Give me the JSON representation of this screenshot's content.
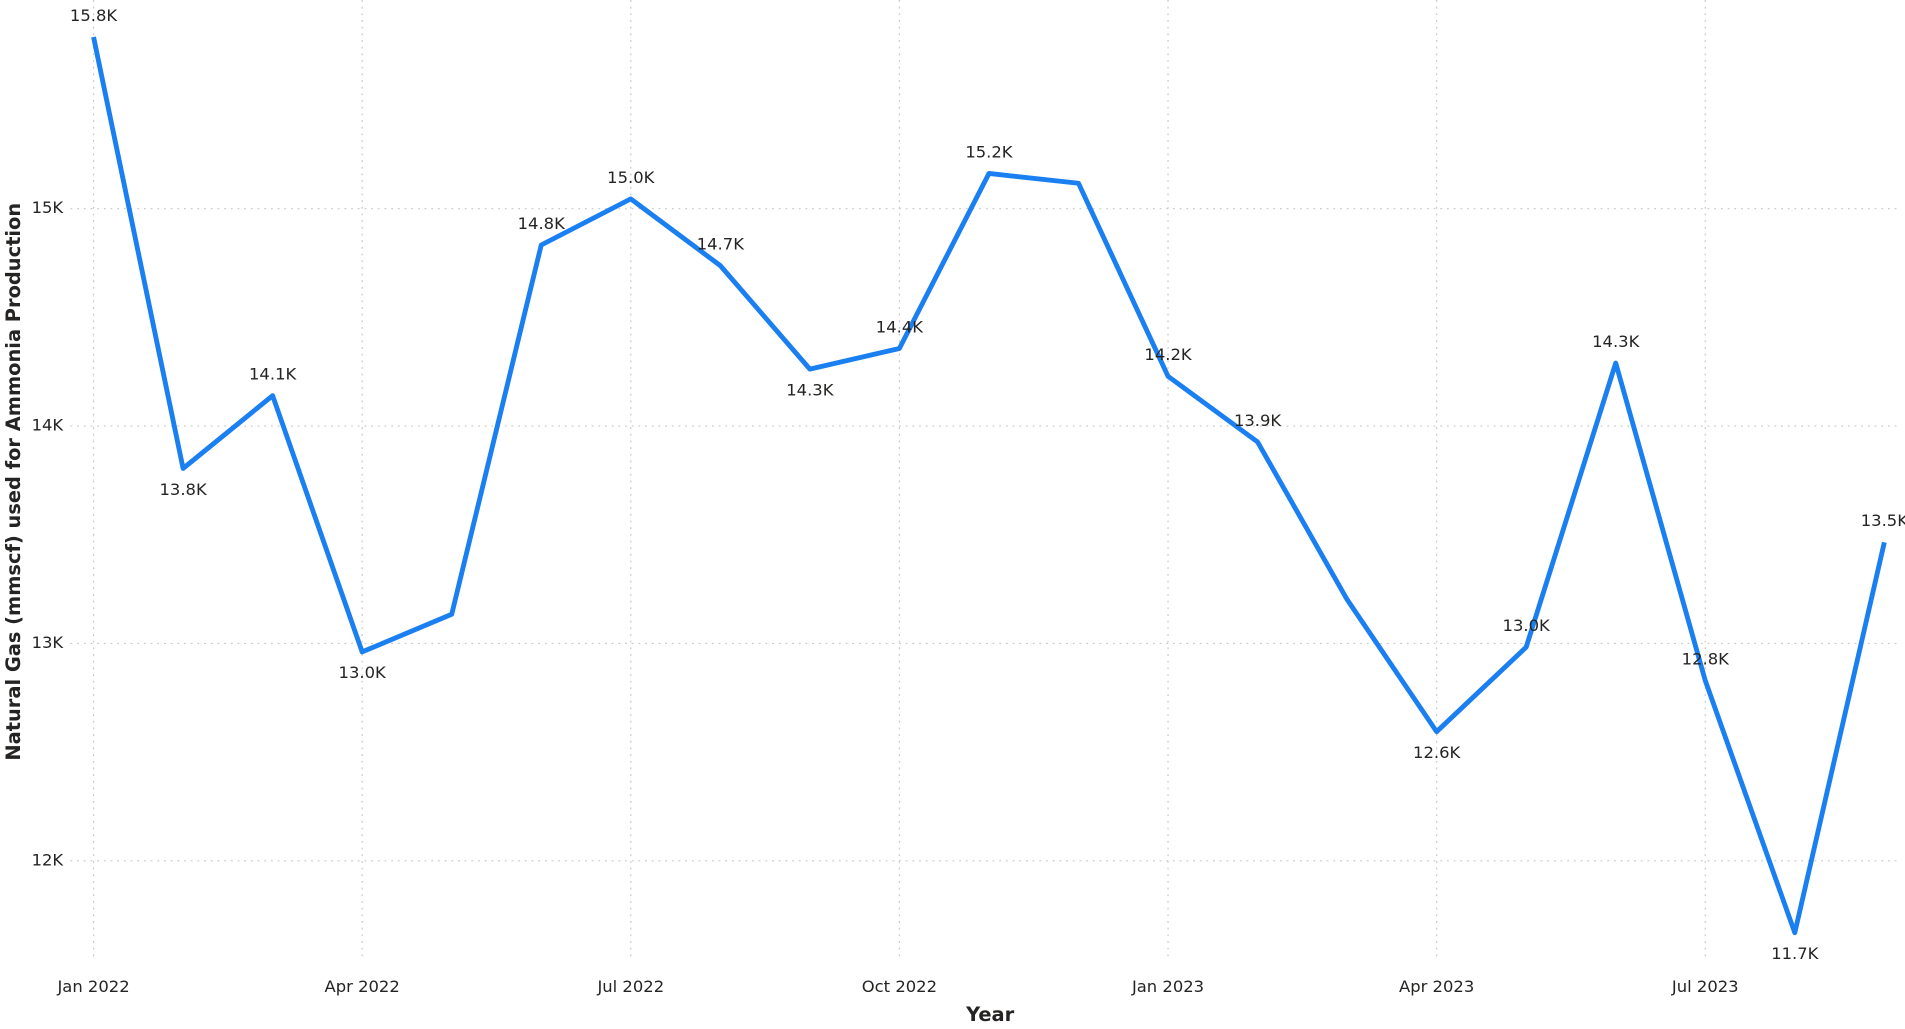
{
  "chart_data": {
    "type": "line",
    "x_label": "Year",
    "y_label": "Natural Gas (mmscf) used for Ammonia Production",
    "x": [
      "2022-01",
      "2022-02",
      "2022-03",
      "2022-04",
      "2022-05",
      "2022-06",
      "2022-07",
      "2022-08",
      "2022-09",
      "2022-10",
      "2022-11",
      "2022-12",
      "2023-01",
      "2023-02",
      "2023-03",
      "2023-04",
      "2023-05",
      "2023-06",
      "2023-07",
      "2023-08",
      "2023-09"
    ],
    "xticks": [
      {
        "value": "2022-01",
        "label": "Jan 2022"
      },
      {
        "value": "2022-04",
        "label": "Apr 2022"
      },
      {
        "value": "2022-07",
        "label": "Jul 2022"
      },
      {
        "value": "2022-10",
        "label": "Oct 2022"
      },
      {
        "value": "2023-01",
        "label": "Jan 2023"
      },
      {
        "value": "2023-04",
        "label": "Apr 2023"
      },
      {
        "value": "2023-07",
        "label": "Jul 2023"
      }
    ],
    "series": [
      {
        "name": "Natural Gas",
        "color": "#1a7ff0",
        "values": [
          15790,
          13805,
          14140,
          12961,
          13134,
          14833,
          15045,
          14738,
          14262,
          14357,
          15162,
          15117,
          14229,
          13927,
          13202,
          12594,
          12983,
          14290,
          12829,
          11669,
          13465
        ],
        "value_labels": [
          "15.8K",
          "13.8K",
          "14.1K",
          "13.0K",
          null,
          "14.8K",
          "15.0K",
          "14.7K",
          "14.3K",
          "14.4K",
          "15.2K",
          null,
          "14.2K",
          "13.9K",
          null,
          "12.6K",
          "13.0K",
          "14.3K",
          "12.8K",
          "11.7K",
          "13.5K"
        ]
      }
    ],
    "ylim": [
      11550,
      15960
    ],
    "yticks": [
      {
        "value": 12000,
        "label": "12K"
      },
      {
        "value": 13000,
        "label": "13K"
      },
      {
        "value": 14000,
        "label": "14K"
      },
      {
        "value": 15000,
        "label": "15K"
      }
    ],
    "grid": true
  }
}
